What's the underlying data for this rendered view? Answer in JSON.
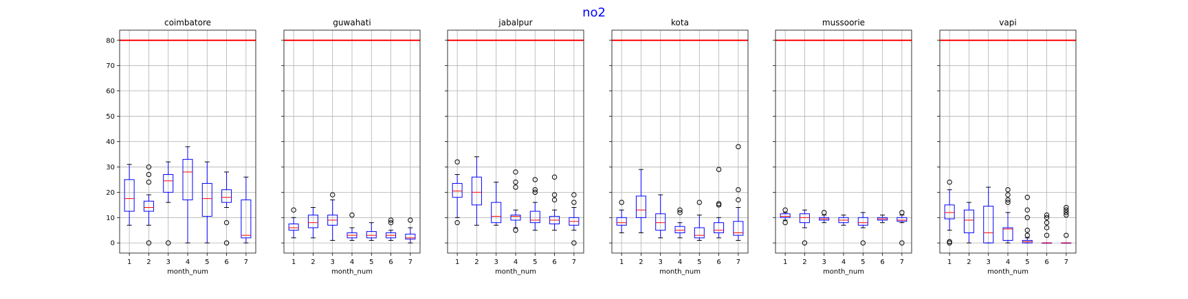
{
  "suptitle": "no2",
  "colors": {
    "suptitle": "#0000ff",
    "box": "#0000ff",
    "median": "#ff0000",
    "threshold": "#ff0000",
    "grid": "#b0b0b0",
    "flier": "#000000"
  },
  "chart_data": {
    "type": "box",
    "title": "no2",
    "xlabel": "month_num",
    "ylabel": "",
    "ylim": [
      -4,
      84
    ],
    "yticks": [
      0,
      10,
      20,
      30,
      40,
      50,
      60,
      70,
      80
    ],
    "categories": [
      "1",
      "2",
      "3",
      "4",
      "5",
      "6",
      "7"
    ],
    "threshold": 80,
    "grid": true,
    "sharey": true,
    "panels": [
      {
        "title": "coimbatore",
        "boxes": [
          {
            "month": "1",
            "whislo": 7,
            "q1": 12.5,
            "med": 17.5,
            "q3": 25,
            "whishi": 31,
            "fliers": []
          },
          {
            "month": "2",
            "whislo": 7,
            "q1": 12.5,
            "med": 14,
            "q3": 16.5,
            "whishi": 19,
            "fliers": [
              0,
              24,
              27,
              30
            ]
          },
          {
            "month": "3",
            "whislo": 16,
            "q1": 20,
            "med": 24.5,
            "q3": 27,
            "whishi": 32,
            "fliers": [
              0
            ]
          },
          {
            "month": "4",
            "whislo": 0,
            "q1": 17,
            "med": 28,
            "q3": 33,
            "whishi": 38,
            "fliers": []
          },
          {
            "month": "5",
            "whislo": 0,
            "q1": 10.5,
            "med": 17.5,
            "q3": 23.5,
            "whishi": 32,
            "fliers": []
          },
          {
            "month": "6",
            "whislo": 14,
            "q1": 16,
            "med": 18,
            "q3": 21,
            "whishi": 28,
            "fliers": [
              0,
              8
            ]
          },
          {
            "month": "7",
            "whislo": 0,
            "q1": 2,
            "med": 3,
            "q3": 17,
            "whishi": 26,
            "fliers": []
          }
        ]
      },
      {
        "title": "guwahati",
        "boxes": [
          {
            "month": "1",
            "whislo": 2,
            "q1": 5,
            "med": 6,
            "q3": 7.5,
            "whishi": 10,
            "fliers": [
              13
            ]
          },
          {
            "month": "2",
            "whislo": 2,
            "q1": 6,
            "med": 8,
            "q3": 11,
            "whishi": 14,
            "fliers": []
          },
          {
            "month": "3",
            "whislo": 1,
            "q1": 7,
            "med": 9,
            "q3": 11,
            "whishi": 17,
            "fliers": [
              19
            ]
          },
          {
            "month": "4",
            "whislo": 1,
            "q1": 2,
            "med": 3,
            "q3": 4,
            "whishi": 6,
            "fliers": [
              11
            ]
          },
          {
            "month": "5",
            "whislo": 1,
            "q1": 2,
            "med": 3,
            "q3": 4.5,
            "whishi": 8,
            "fliers": []
          },
          {
            "month": "6",
            "whislo": 1,
            "q1": 2,
            "med": 3,
            "q3": 4,
            "whishi": 5,
            "fliers": [
              8,
              9
            ]
          },
          {
            "month": "7",
            "whislo": 0,
            "q1": 1.5,
            "med": 2,
            "q3": 3.5,
            "whishi": 6,
            "fliers": [
              9
            ]
          }
        ]
      },
      {
        "title": "jabalpur",
        "boxes": [
          {
            "month": "1",
            "whislo": 10,
            "q1": 18,
            "med": 20.5,
            "q3": 23.5,
            "whishi": 27,
            "fliers": [
              8,
              32
            ]
          },
          {
            "month": "2",
            "whislo": 7,
            "q1": 15,
            "med": 20,
            "q3": 26,
            "whishi": 34,
            "fliers": []
          },
          {
            "month": "3",
            "whislo": 7,
            "q1": 8,
            "med": 10.5,
            "q3": 16,
            "whishi": 24,
            "fliers": []
          },
          {
            "month": "4",
            "whislo": 6,
            "q1": 9,
            "med": 10.5,
            "q3": 11,
            "whishi": 13,
            "fliers": [
              5,
              22,
              24,
              28
            ]
          },
          {
            "month": "5",
            "whislo": 5,
            "q1": 8,
            "med": 9,
            "q3": 12.5,
            "whishi": 16,
            "fliers": [
              20,
              21,
              25
            ]
          },
          {
            "month": "6",
            "whislo": 5,
            "q1": 7.5,
            "med": 9,
            "q3": 10.5,
            "whishi": 13,
            "fliers": [
              17,
              19,
              26
            ]
          },
          {
            "month": "7",
            "whislo": 5,
            "q1": 7,
            "med": 8.5,
            "q3": 10,
            "whishi": 14,
            "fliers": [
              0,
              16,
              19
            ]
          }
        ]
      },
      {
        "title": "kota",
        "boxes": [
          {
            "month": "1",
            "whislo": 4,
            "q1": 7,
            "med": 8,
            "q3": 10,
            "whishi": 13,
            "fliers": [
              16
            ]
          },
          {
            "month": "2",
            "whislo": 4,
            "q1": 10,
            "med": 13,
            "q3": 18.5,
            "whishi": 29,
            "fliers": []
          },
          {
            "month": "3",
            "whislo": 2,
            "q1": 5,
            "med": 8,
            "q3": 11.5,
            "whishi": 19,
            "fliers": []
          },
          {
            "month": "4",
            "whislo": 2,
            "q1": 4,
            "med": 5,
            "q3": 6.5,
            "whishi": 8,
            "fliers": [
              12,
              13
            ]
          },
          {
            "month": "5",
            "whislo": 1,
            "q1": 2,
            "med": 3,
            "q3": 6,
            "whishi": 11,
            "fliers": [
              16
            ]
          },
          {
            "month": "6",
            "whislo": 2,
            "q1": 4,
            "med": 5,
            "q3": 8,
            "whishi": 10,
            "fliers": [
              15,
              15.5,
              29
            ]
          },
          {
            "month": "7",
            "whislo": 1,
            "q1": 3,
            "med": 4,
            "q3": 8.5,
            "whishi": 14,
            "fliers": [
              17,
              21,
              38
            ]
          }
        ]
      },
      {
        "title": "mussoorie",
        "boxes": [
          {
            "month": "1",
            "whislo": 9,
            "q1": 10,
            "med": 10.5,
            "q3": 11.5,
            "whishi": 12,
            "fliers": [
              8,
              13
            ]
          },
          {
            "month": "2",
            "whislo": 6,
            "q1": 8,
            "med": 10,
            "q3": 11.5,
            "whishi": 13,
            "fliers": [
              0
            ]
          },
          {
            "month": "3",
            "whislo": 8,
            "q1": 9,
            "med": 9.5,
            "q3": 10,
            "whishi": 11,
            "fliers": [
              12
            ]
          },
          {
            "month": "4",
            "whislo": 7,
            "q1": 8,
            "med": 9,
            "q3": 10,
            "whishi": 11,
            "fliers": []
          },
          {
            "month": "5",
            "whislo": 6,
            "q1": 7,
            "med": 8,
            "q3": 10,
            "whishi": 12,
            "fliers": [
              0
            ]
          },
          {
            "month": "6",
            "whislo": 8,
            "q1": 9,
            "med": 9.5,
            "q3": 10,
            "whishi": 11,
            "fliers": []
          },
          {
            "month": "7",
            "whislo": 8,
            "q1": 8.5,
            "med": 9,
            "q3": 10,
            "whishi": 11,
            "fliers": [
              0,
              12
            ]
          }
        ]
      },
      {
        "title": "vapi",
        "boxes": [
          {
            "month": "1",
            "whislo": 5,
            "q1": 9.5,
            "med": 12,
            "q3": 15,
            "whishi": 21,
            "fliers": [
              0,
              0.5,
              24
            ]
          },
          {
            "month": "2",
            "whislo": 0,
            "q1": 4,
            "med": 9,
            "q3": 13,
            "whishi": 16,
            "fliers": []
          },
          {
            "month": "3",
            "whislo": 0,
            "q1": 0,
            "med": 4,
            "q3": 14.5,
            "whishi": 22,
            "fliers": []
          },
          {
            "month": "4",
            "whislo": 0,
            "q1": 1,
            "med": 5.5,
            "q3": 6,
            "whishi": 12,
            "fliers": [
              16,
              17,
              19,
              21
            ]
          },
          {
            "month": "5",
            "whislo": 0,
            "q1": 0,
            "med": 0.5,
            "q3": 1,
            "whishi": 2,
            "fliers": [
              3,
              5,
              10,
              13,
              18
            ]
          },
          {
            "month": "6",
            "whislo": 0,
            "q1": 0,
            "med": 0,
            "q3": 0,
            "whishi": 0,
            "fliers": [
              3,
              6,
              8,
              10,
              11
            ]
          },
          {
            "month": "7",
            "whislo": 0,
            "q1": 0,
            "med": 0,
            "q3": 0,
            "whishi": 0,
            "fliers": [
              3,
              11,
              12,
              13,
              14
            ]
          }
        ]
      }
    ]
  }
}
